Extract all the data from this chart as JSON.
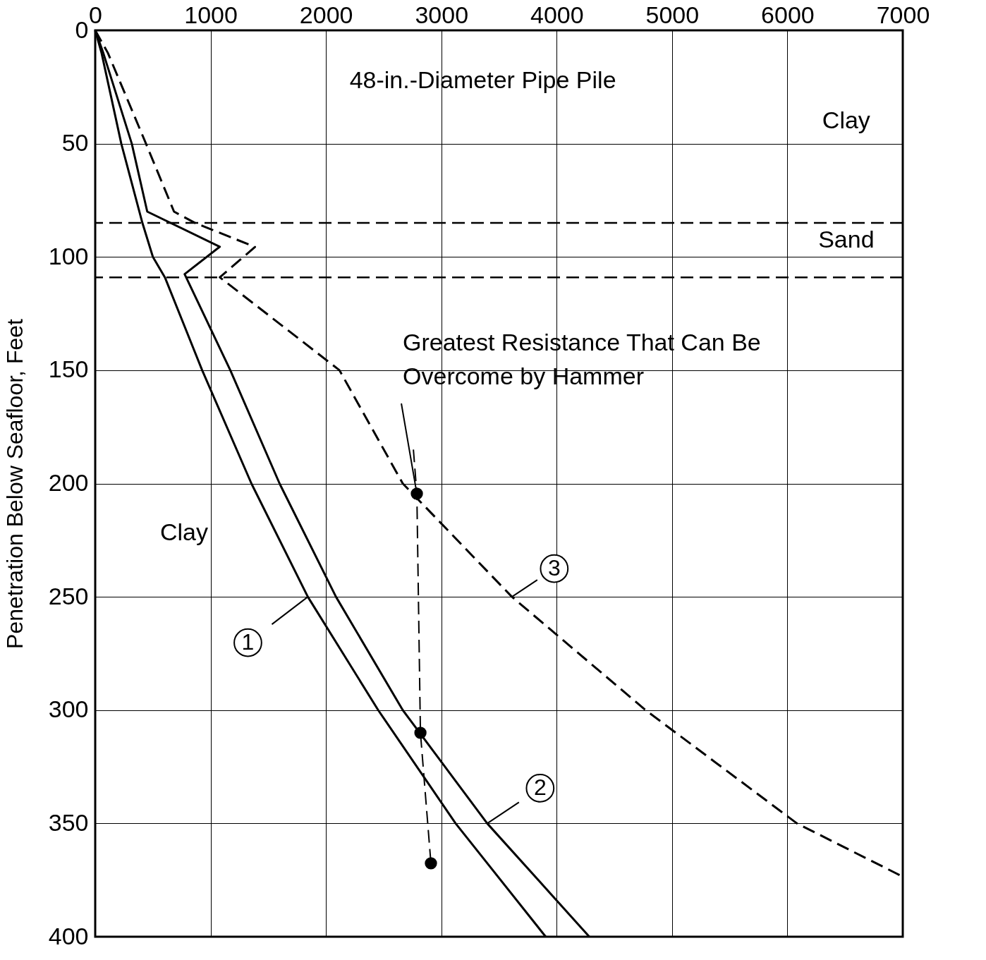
{
  "chart_data": {
    "type": "line",
    "title": "48-in.-Diameter Pipe Pile",
    "ylabel": "Penetration Below Seafloor, Feet",
    "xlim": [
      0,
      7000
    ],
    "xticks": [
      0,
      1000,
      2000,
      3000,
      4000,
      5000,
      6000,
      7000
    ],
    "ylim": [
      400,
      0
    ],
    "yticks": [
      0,
      50,
      100,
      150,
      200,
      250,
      300,
      350,
      400
    ],
    "grid": true,
    "series": [
      {
        "color": "#000000",
        "line_style": "solid",
        "x": [
          0,
          55,
          226,
          409,
          500,
          604,
          927,
          1354,
          1843,
          2453,
          3124,
          3905
        ],
        "values": [
          0,
          10,
          50,
          85,
          100,
          109,
          150,
          200,
          250,
          300,
          350,
          400
        ]
      },
      {
        "color": "#000000",
        "line_style": "solid",
        "x": [
          0,
          70,
          317,
          451,
          1080,
          775,
          1171,
          1598,
          2087,
          2666,
          3398,
          4283
        ],
        "values": [
          0,
          10,
          50,
          80,
          95.5,
          107.6,
          150,
          200,
          250,
          300,
          350,
          400
        ]
      },
      {
        "color": "#000000",
        "line_style": "dashed",
        "x": [
          0,
          110,
          440,
          683,
          866,
          1385,
          1080,
          2117,
          2666,
          3612,
          4771,
          6083,
          7000
        ],
        "values": [
          0,
          10,
          50,
          80,
          85,
          95.6,
          109,
          150,
          200,
          250,
          300,
          350,
          373.5
        ]
      },
      {
        "color": "#000000",
        "line_style": "dashed",
        "x": [
          2758,
          2788,
          2819,
          2910
        ],
        "values": [
          185,
          204.5,
          310,
          367.6
        ]
      },
      {
        "type": "scatter",
        "color": "#000000",
        "marker": "circle",
        "x": [
          2788,
          2819,
          2910
        ],
        "values": [
          204.5,
          310,
          367.6
        ]
      }
    ],
    "ref_lines": [
      {
        "axis": "y",
        "value": 85,
        "color": "#000000",
        "line_style": "dashed"
      },
      {
        "axis": "y",
        "value": 109,
        "color": "#000000",
        "line_style": "dashed"
      }
    ],
    "annotations": [
      "Clay",
      "Sand",
      "Clay",
      {
        "text": "Greatest Resistance That Can Be Overcome by Hammer",
        "x": 2788,
        "y": 204.5
      },
      {
        "text": "1",
        "x": 1843,
        "y": 250
      },
      {
        "text": "2",
        "x": 3398,
        "y": 350
      },
      {
        "text": "3",
        "x": 3612,
        "y": 250
      }
    ]
  }
}
